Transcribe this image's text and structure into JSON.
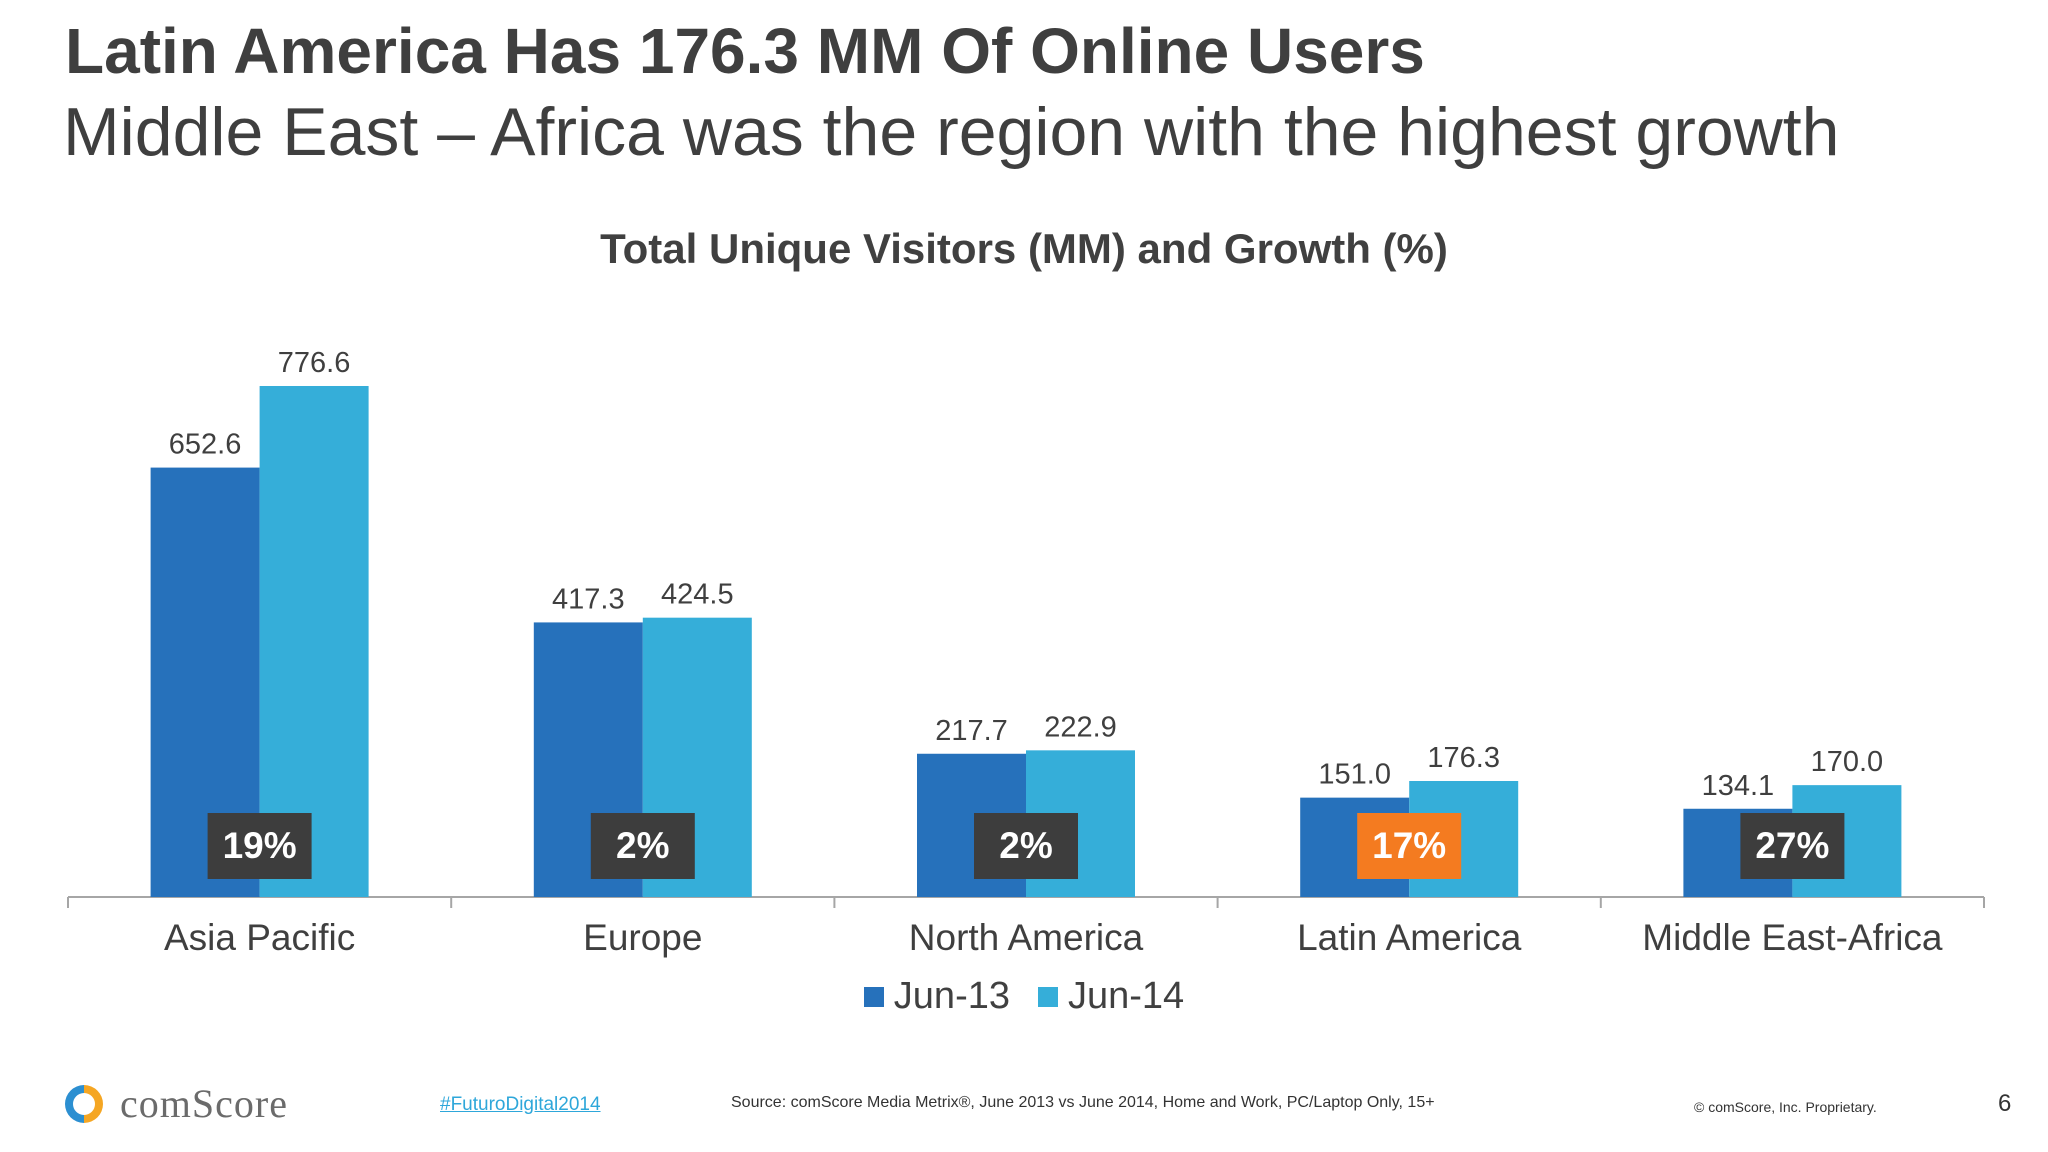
{
  "slide": {
    "title": "Latin America Has 176.3 MM Of Online Users",
    "subtitle": "Middle East – Africa was the region with the highest growth"
  },
  "chart_data": {
    "type": "bar",
    "title": "Total Unique Visitors (MM) and Growth (%)",
    "categories": [
      "Asia Pacific",
      "Europe",
      "North America",
      "Latin America",
      "Middle East-Africa"
    ],
    "series": [
      {
        "name": "Jun-13",
        "values": [
          652.6,
          417.3,
          217.7,
          151.0,
          134.1
        ],
        "labels": [
          "652.6",
          "417.3",
          "217.7",
          "151.0",
          "134.1"
        ],
        "color": "#2671bb"
      },
      {
        "name": "Jun-14",
        "values": [
          776.6,
          424.5,
          222.9,
          176.3,
          170.0
        ],
        "labels": [
          "776.6",
          "424.5",
          "222.9",
          "176.3",
          "170.0"
        ],
        "color": "#35aed9"
      }
    ],
    "growth": [
      "19%",
      "2%",
      "2%",
      "17%",
      "27%"
    ],
    "growth_badge_colors": [
      "#3d3d3d",
      "#3d3d3d",
      "#3d3d3d",
      "#f47b20",
      "#3d3d3d"
    ],
    "ylim": [
      0,
      800
    ],
    "legend_position": "bottom",
    "grid": false
  },
  "footer": {
    "logo_text": "comScore",
    "hashtag": "#FuturoDigital2014",
    "source": "Source: comScore Media Metrix®, June 2013 vs June 2014, Home and Work, PC/Laptop Only, 15+",
    "copyright": "© comScore, Inc. Proprietary.",
    "page_number": "6"
  }
}
